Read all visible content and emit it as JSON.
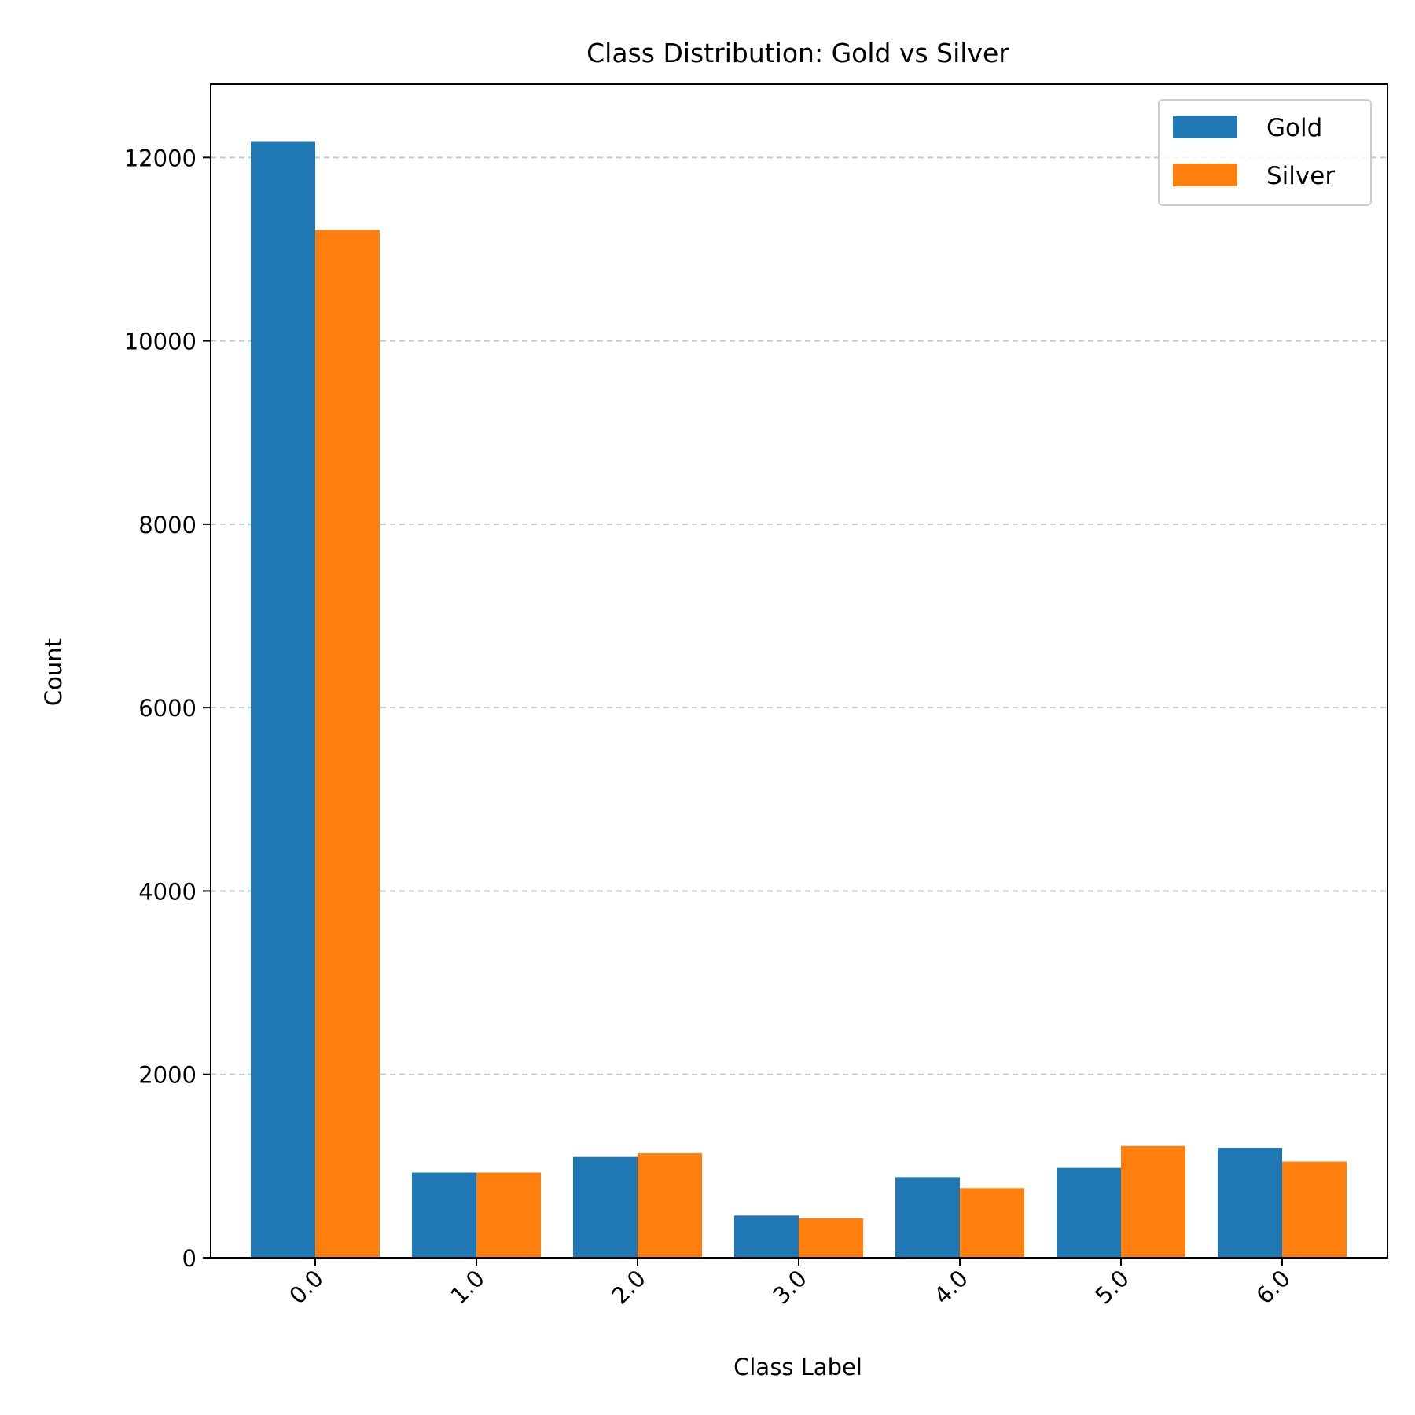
{
  "chart_data": {
    "type": "bar",
    "title": "Class Distribution: Gold vs Silver",
    "xlabel": "Class Label",
    "ylabel": "Count",
    "categories": [
      "0.0",
      "1.0",
      "2.0",
      "3.0",
      "4.0",
      "5.0",
      "6.0"
    ],
    "series": [
      {
        "name": "Gold",
        "color": "#1f77b4",
        "values": [
          12170,
          930,
          1100,
          460,
          880,
          980,
          1200
        ]
      },
      {
        "name": "Silver",
        "color": "#ff7f0e",
        "values": [
          11210,
          930,
          1140,
          430,
          760,
          1220,
          1050
        ]
      }
    ],
    "ylim": [
      0,
      12800
    ],
    "yticks": [
      0,
      2000,
      4000,
      6000,
      8000,
      10000,
      12000
    ],
    "grid": "y-dashed",
    "legend_position": "top-right",
    "xtick_rotation": 45
  }
}
